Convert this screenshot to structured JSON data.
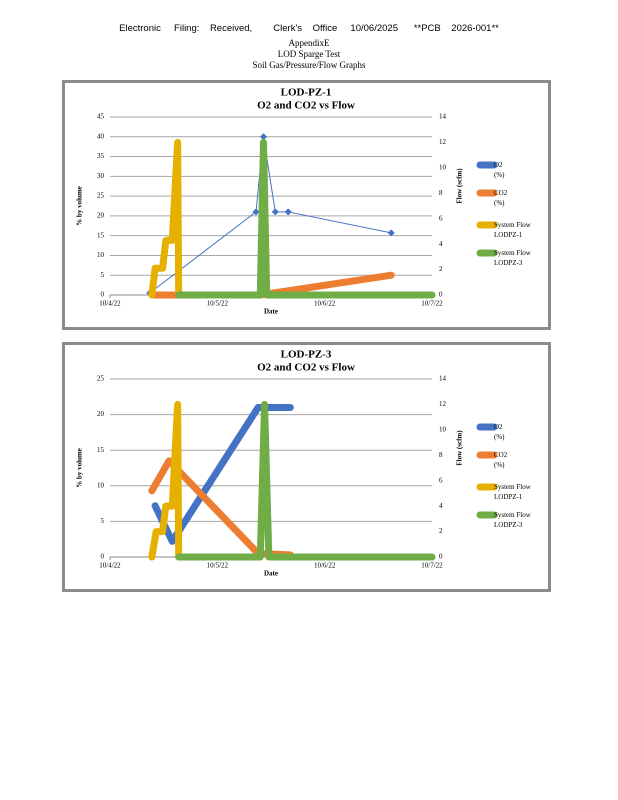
{
  "header": {
    "filing": "Electronic     Filing:    Received,        Clerk's    Office     10/06/2025      **PCB    2026-001**",
    "appendix": "AppendixE",
    "test": "LOD Sparge Test",
    "graphs": "Soil Gas/Pressure/Flow Graphs"
  },
  "chart_data": [
    {
      "type": "line",
      "title": "LOD-PZ-1",
      "subtitle": "O2 and CO2 vs Flow",
      "x_label": "Date",
      "y_label": "% by volume",
      "y2_label": "Flow (scfm)",
      "xlim": [
        0,
        3
      ],
      "xticks": [
        {
          "value": 0,
          "label": "10/4/22"
        },
        {
          "value": 1,
          "label": "10/5/22"
        },
        {
          "value": 2,
          "label": "10/6/22"
        },
        {
          "value": 3,
          "label": "10/7/22"
        }
      ],
      "ylim": [
        0,
        45
      ],
      "yticks": [
        0,
        5,
        10,
        15,
        20,
        25,
        30,
        35,
        40,
        45
      ],
      "y2lim": [
        0,
        14
      ],
      "y2ticks": [
        0,
        2,
        4,
        6,
        8,
        10,
        12,
        14
      ],
      "grid": true,
      "series": [
        {
          "name": "O2\n(%)",
          "color": "#4472c4",
          "width": 1,
          "markers": true,
          "x": [
            0.37,
            1.36,
            1.43,
            1.54,
            1.66,
            2.62
          ],
          "values": [
            0.5,
            21,
            40,
            21,
            21,
            15.7
          ]
        },
        {
          "name": "CO2\n(%)",
          "color": "#ed7d31",
          "width": 7,
          "x": [
            0.39,
            0.64,
            1.4,
            2.62
          ],
          "values": [
            0,
            0,
            0,
            5
          ]
        },
        {
          "name": "System Flow\nLODPZ-1",
          "color": "#e6b000",
          "width": 7,
          "axis": "y2",
          "x": [
            0.39,
            0.42,
            0.49,
            0.52,
            0.58,
            0.63,
            0.64
          ],
          "values": [
            0,
            2.1,
            2.1,
            4.3,
            4.3,
            12,
            0
          ]
        },
        {
          "name": "System Flow\nLODPZ-3",
          "color": "#70ad47",
          "width": 7,
          "axis": "y2",
          "x": [
            0.64,
            1.4,
            1.43,
            1.46,
            3.0
          ],
          "values": [
            0,
            0,
            12,
            0,
            0
          ]
        }
      ]
    },
    {
      "type": "line",
      "title": "LOD-PZ-3",
      "subtitle": "O2 and CO2 vs Flow",
      "x_label": "Date",
      "y_label": "% by volume",
      "y2_label": "Flow (scfm)",
      "xlim": [
        0,
        3
      ],
      "xticks": [
        {
          "value": 0,
          "label": "10/4/22"
        },
        {
          "value": 1,
          "label": "10/5/22"
        },
        {
          "value": 2,
          "label": "10/6/22"
        },
        {
          "value": 3,
          "label": "10/7/22"
        }
      ],
      "ylim": [
        0,
        25
      ],
      "yticks": [
        0,
        5,
        10,
        15,
        20,
        25
      ],
      "y2lim": [
        0,
        14
      ],
      "y2ticks": [
        0,
        2,
        4,
        6,
        8,
        10,
        12,
        14
      ],
      "grid": true,
      "series": [
        {
          "name": "O2\n(%)",
          "color": "#4472c4",
          "width": 7,
          "x": [
            0.42,
            0.58,
            1.38,
            1.68
          ],
          "values": [
            7.2,
            2.2,
            21,
            21
          ]
        },
        {
          "name": "CO2\n(%)",
          "color": "#ed7d31",
          "width": 7,
          "x": [
            0.39,
            0.55,
            1.38,
            1.68
          ],
          "values": [
            9.3,
            13.5,
            0.5,
            0.3
          ]
        },
        {
          "name": "System Flow\nLODPZ-1",
          "color": "#e6b000",
          "width": 7,
          "axis": "y2",
          "x": [
            0.39,
            0.43,
            0.49,
            0.52,
            0.58,
            0.63,
            0.64
          ],
          "values": [
            0,
            2,
            2,
            4,
            4,
            12,
            0
          ]
        },
        {
          "name": "System Flow\nLODPZ-3",
          "color": "#70ad47",
          "width": 7,
          "axis": "y2",
          "x": [
            0.64,
            1.4,
            1.44,
            1.48,
            3.0
          ],
          "values": [
            0,
            0,
            12,
            0,
            0
          ]
        }
      ]
    }
  ]
}
